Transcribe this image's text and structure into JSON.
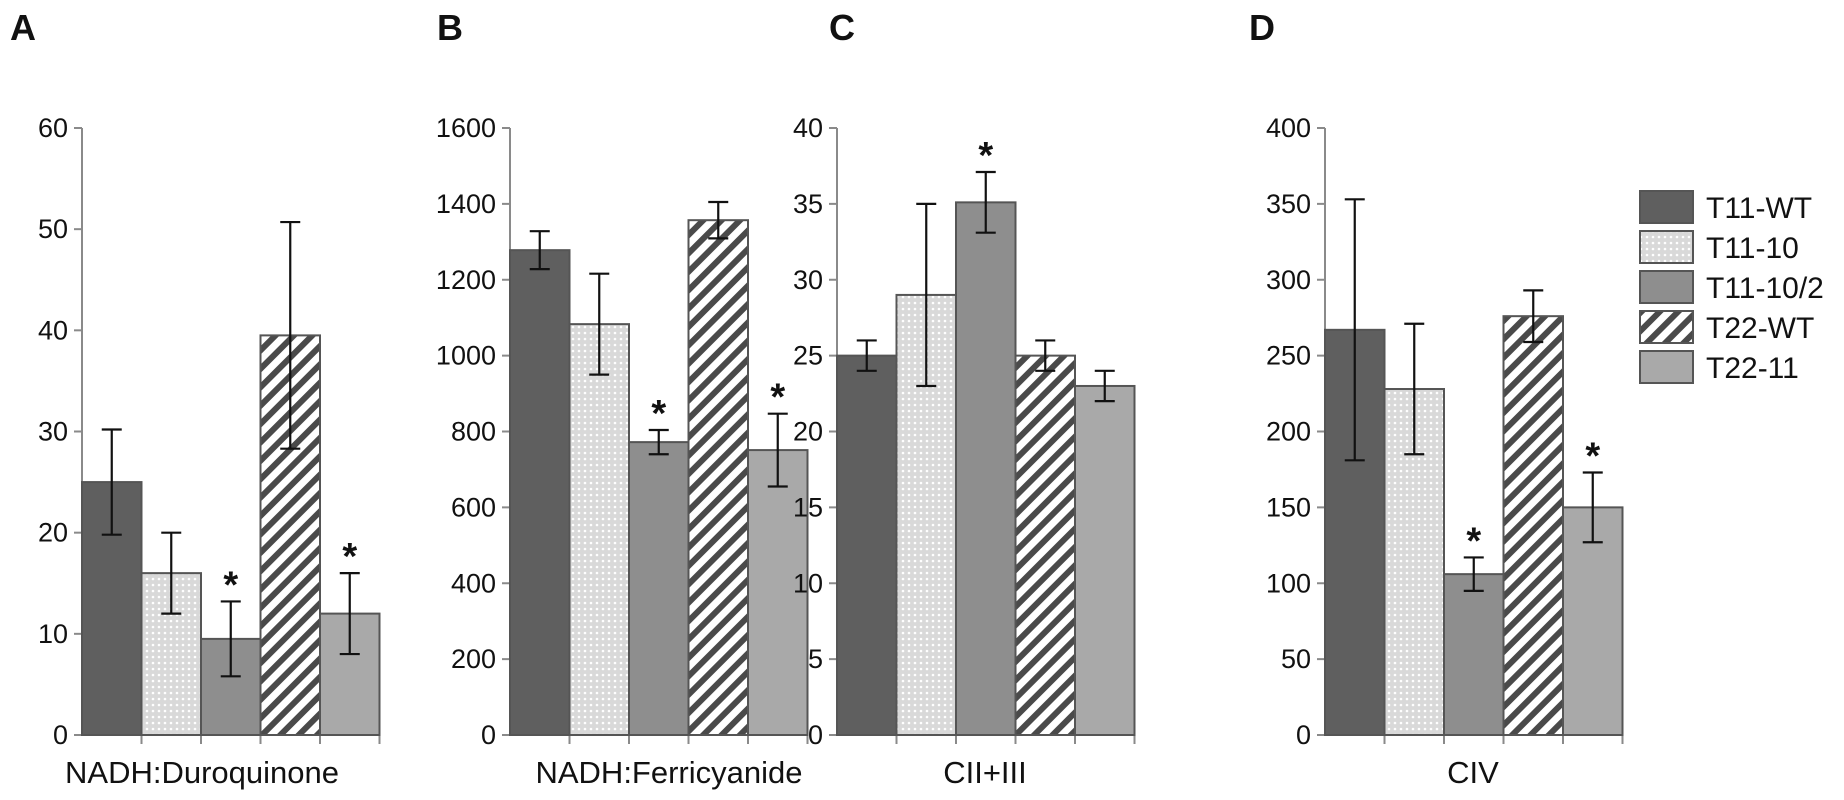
{
  "legend": {
    "series": [
      {
        "name": "T11-WT",
        "fill": "dark"
      },
      {
        "name": "T11-10",
        "fill": "dots"
      },
      {
        "name": "T11-10/2",
        "fill": "medium"
      },
      {
        "name": "T22-WT",
        "fill": "hatch"
      },
      {
        "name": "T22-11",
        "fill": "light"
      }
    ]
  },
  "colors": {
    "dark": "#5f5f5f",
    "medium": "#8e8e8e",
    "light": "#a9a9a9",
    "dots_bg": "#d9d9d9",
    "dots_fg": "#ffffff",
    "hatch_bg": "#ffffff",
    "hatch_fg": "#4a4a4a",
    "axis": "#8a8a8a",
    "bar_border": "#555555"
  },
  "chart_data": [
    {
      "type": "bar",
      "panel": "A",
      "xlabel": "NADH:Duroquinone",
      "ylim": [
        0,
        60
      ],
      "yticks": [
        0,
        10,
        20,
        30,
        40,
        50,
        60
      ],
      "series_names": [
        "T11-WT",
        "T11-10",
        "T11-10/2",
        "T22-WT",
        "T22-11"
      ],
      "values": [
        25,
        16,
        9.5,
        39.5,
        12
      ],
      "errors": [
        5.2,
        4,
        3.7,
        11.2,
        4
      ],
      "significant": [
        false,
        false,
        true,
        false,
        true
      ]
    },
    {
      "type": "bar",
      "panel": "B",
      "xlabel": "NADH:Ferricyanide",
      "ylim": [
        0,
        1600
      ],
      "yticks": [
        0,
        200,
        400,
        600,
        800,
        1000,
        1200,
        1400,
        1600
      ],
      "series_names": [
        "T11-WT",
        "T11-10",
        "T11-10/2",
        "T22-WT",
        "T22-11"
      ],
      "values": [
        1278,
        1083,
        772,
        1357,
        751
      ],
      "errors": [
        50,
        133,
        32,
        48,
        96
      ],
      "significant": [
        false,
        false,
        true,
        false,
        true
      ]
    },
    {
      "type": "bar",
      "panel": "C",
      "xlabel": "CII+III",
      "ylim": [
        0,
        40
      ],
      "yticks": [
        0,
        5,
        10,
        15,
        20,
        25,
        30,
        35,
        40
      ],
      "series_names": [
        "T11-WT",
        "T11-10",
        "T11-10/2",
        "T22-WT",
        "T22-11"
      ],
      "values": [
        25,
        29,
        35.1,
        25,
        23
      ],
      "errors": [
        1,
        6,
        2,
        1,
        1
      ],
      "significant": [
        false,
        false,
        true,
        false,
        false
      ]
    },
    {
      "type": "bar",
      "panel": "D",
      "xlabel": "CIV",
      "ylim": [
        0,
        400
      ],
      "yticks": [
        0,
        50,
        100,
        150,
        200,
        250,
        300,
        350,
        400
      ],
      "series_names": [
        "T11-WT",
        "T11-10",
        "T11-10/2",
        "T22-WT",
        "T22-11"
      ],
      "values": [
        267,
        228,
        106,
        276,
        150
      ],
      "errors": [
        86,
        43,
        11,
        17,
        23
      ],
      "significant": [
        false,
        false,
        true,
        false,
        true
      ]
    }
  ]
}
